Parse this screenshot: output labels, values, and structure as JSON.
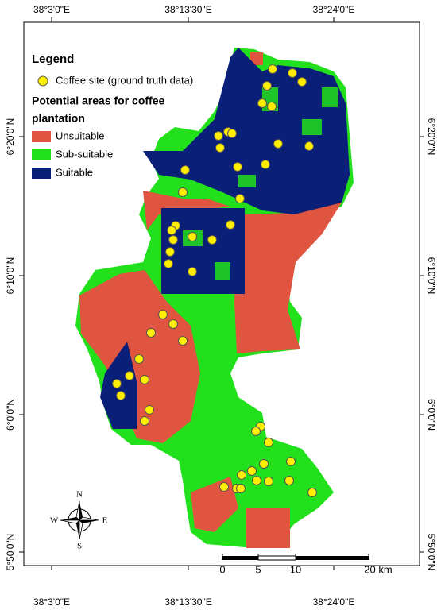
{
  "graticule": {
    "longitudes": [
      "38°3'0\"E",
      "38°13'30\"E",
      "38°24'0\"E"
    ],
    "latitudes": [
      "6°20'0\"N",
      "6°10'0\"N",
      "6°0'0\"N",
      "5°50'0\"N"
    ]
  },
  "legend": {
    "title": "Legend",
    "point_label": "Coffee site (ground truth data)",
    "areas_title": [
      "Potential areas for coffee",
      "plantation"
    ],
    "classes": [
      {
        "label": "Unsuitable",
        "color": "#e0553f"
      },
      {
        "label": "Sub-suitable",
        "color": "#22e01c"
      },
      {
        "label": "Suitable",
        "color": "#0a1f78"
      }
    ]
  },
  "compass": {
    "north": "N",
    "east": "E",
    "south": "S",
    "west": "W"
  },
  "scale_bar": {
    "labels": [
      "0",
      "5",
      "10",
      "20 km"
    ]
  }
}
